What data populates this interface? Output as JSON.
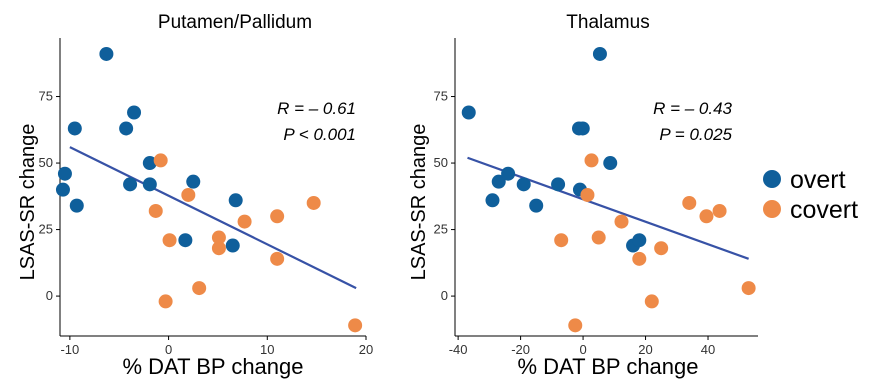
{
  "colors": {
    "overt": "#0f5f9b",
    "covert": "#ee8a48",
    "trend": "#3752a6"
  },
  "legend": [
    {
      "label": "overt",
      "group": "overt"
    },
    {
      "label": "covert",
      "group": "covert"
    }
  ],
  "chart_data": [
    {
      "type": "scatter",
      "title": "Putamen/Pallidum",
      "xlabel": "% DAT BP change",
      "ylabel": "LSAS-SR change",
      "xlim": [
        -11,
        20
      ],
      "ylim": [
        -15,
        97
      ],
      "xticks": [
        -10,
        0,
        10,
        20
      ],
      "xtick_labels": [
        "-10",
        "0",
        "10",
        "20"
      ],
      "yticks": [
        0,
        25,
        50,
        75
      ],
      "ytick_labels": [
        "0",
        "25",
        "50",
        "75"
      ],
      "grid": false,
      "stats": [
        "R = – 0.61",
        "P < 0.001"
      ],
      "trendline": {
        "x": [
          -10,
          19
        ],
        "y": [
          56,
          3
        ]
      },
      "series": [
        {
          "name": "overt",
          "points": [
            [
              -6.3,
              91
            ],
            [
              -9.5,
              63
            ],
            [
              -3.5,
              69
            ],
            [
              -4.3,
              63
            ],
            [
              -10.5,
              46
            ],
            [
              -10.7,
              40
            ],
            [
              -9.3,
              34
            ],
            [
              -3.9,
              42
            ],
            [
              -1.9,
              50
            ],
            [
              -1.9,
              42
            ],
            [
              2.5,
              43
            ],
            [
              1.7,
              21
            ],
            [
              6.8,
              36
            ],
            [
              6.5,
              19
            ]
          ]
        },
        {
          "name": "covert",
          "points": [
            [
              -0.8,
              51
            ],
            [
              2.0,
              38
            ],
            [
              -1.3,
              32
            ],
            [
              0.1,
              21
            ],
            [
              -0.3,
              -2
            ],
            [
              3.1,
              3
            ],
            [
              5.1,
              22
            ],
            [
              5.1,
              18
            ],
            [
              7.7,
              28
            ],
            [
              11.0,
              30
            ],
            [
              11.0,
              14
            ],
            [
              14.7,
              35
            ],
            [
              18.9,
              -11
            ]
          ]
        }
      ]
    },
    {
      "type": "scatter",
      "title": "Thalamus",
      "xlabel": "% DAT BP change",
      "ylabel": "LSAS-SR change",
      "xlim": [
        -41,
        56
      ],
      "ylim": [
        -15,
        97
      ],
      "xticks": [
        -40,
        -20,
        0,
        20,
        40
      ],
      "xtick_labels": [
        "-40",
        "-20",
        "0",
        "20",
        "40"
      ],
      "yticks": [
        0,
        25,
        50,
        75
      ],
      "ytick_labels": [
        "0",
        "25",
        "50",
        "75"
      ],
      "grid": false,
      "stats": [
        "R = – 0.43",
        "P = 0.025"
      ],
      "trendline": {
        "x": [
          -37,
          53
        ],
        "y": [
          52,
          14
        ]
      },
      "series": [
        {
          "name": "overt",
          "points": [
            [
              5.4,
              91
            ],
            [
              -36.6,
              69
            ],
            [
              -1.3,
              63
            ],
            [
              -0.1,
              63
            ],
            [
              8.7,
              50
            ],
            [
              -27.0,
              43
            ],
            [
              -24.0,
              46
            ],
            [
              -19.0,
              42
            ],
            [
              -8.0,
              42
            ],
            [
              -1.0,
              40
            ],
            [
              -29.0,
              36
            ],
            [
              -15.0,
              34
            ],
            [
              16.0,
              19
            ],
            [
              18.0,
              21
            ]
          ]
        },
        {
          "name": "covert",
          "points": [
            [
              2.7,
              51
            ],
            [
              1.4,
              38
            ],
            [
              12.3,
              28
            ],
            [
              -7.0,
              21
            ],
            [
              5.0,
              22
            ],
            [
              18.0,
              14
            ],
            [
              25.0,
              18
            ],
            [
              22.0,
              -2
            ],
            [
              -2.5,
              -11
            ],
            [
              34.0,
              35
            ],
            [
              39.5,
              30
            ],
            [
              43.7,
              32
            ],
            [
              53.0,
              3
            ]
          ]
        }
      ]
    }
  ]
}
